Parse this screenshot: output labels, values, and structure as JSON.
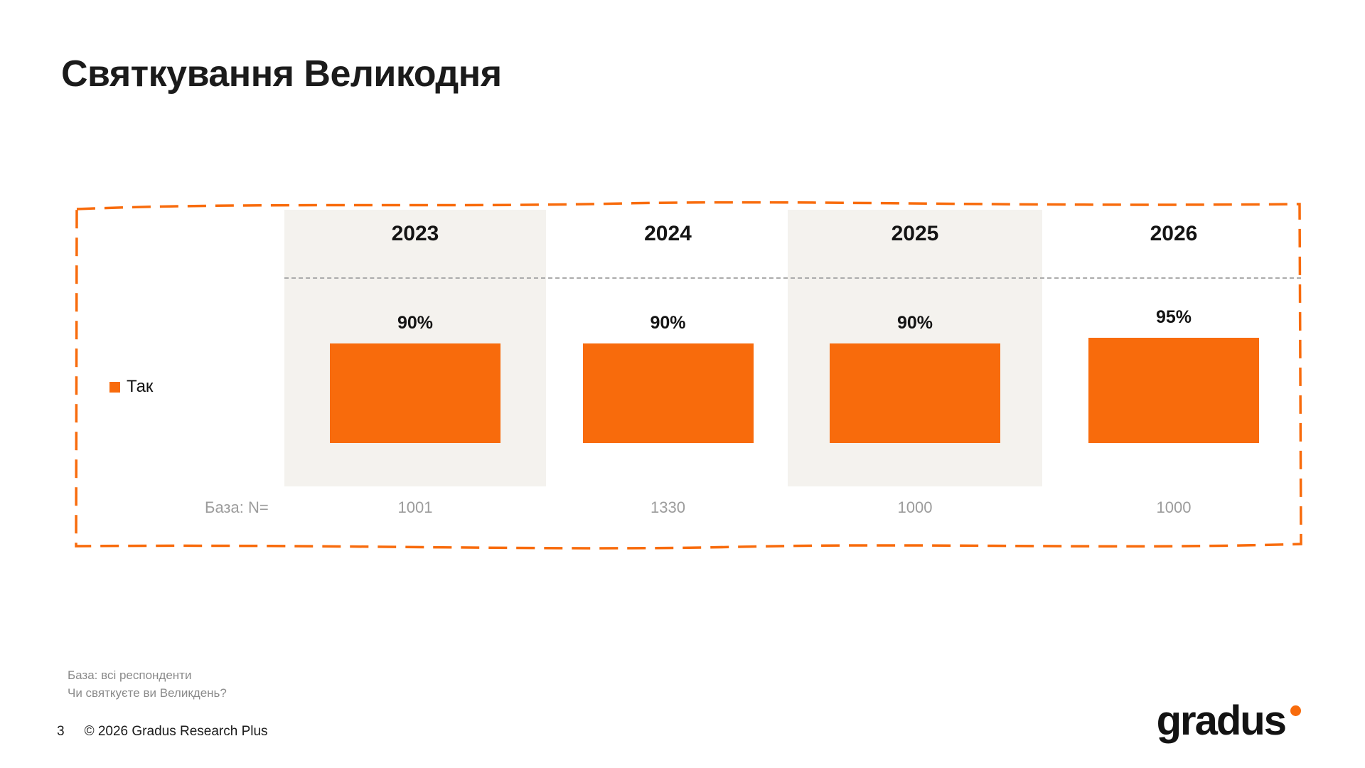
{
  "slide": {
    "title": "Святкування Великодня",
    "page_number": "3",
    "copyright": "© 2026 Gradus Research Plus",
    "logo_text": "gradus",
    "footnotes": [
      "База: всі респонденти",
      "Чи святкуєте ви Великдень?"
    ]
  },
  "chart_data": {
    "type": "bar",
    "title": "Святкування Великодня",
    "categories": [
      "2023",
      "2024",
      "2025",
      "2026"
    ],
    "series": [
      {
        "name": "Так",
        "values": [
          90,
          90,
          90,
          95
        ]
      }
    ],
    "value_labels": [
      "90%",
      "90%",
      "90%",
      "95%"
    ],
    "base_label": "База: N=",
    "base_values": [
      "1001",
      "1330",
      "1000",
      "1000"
    ],
    "ylim": [
      0,
      100
    ],
    "grid": false,
    "legend_position": "left",
    "highlighted_columns": [
      "2023",
      "2025"
    ]
  },
  "colors": {
    "accent": "#F86B0C",
    "column_band": "#F4F2EE",
    "muted_text": "#9C9C9C",
    "divider": "#ABABAB"
  }
}
